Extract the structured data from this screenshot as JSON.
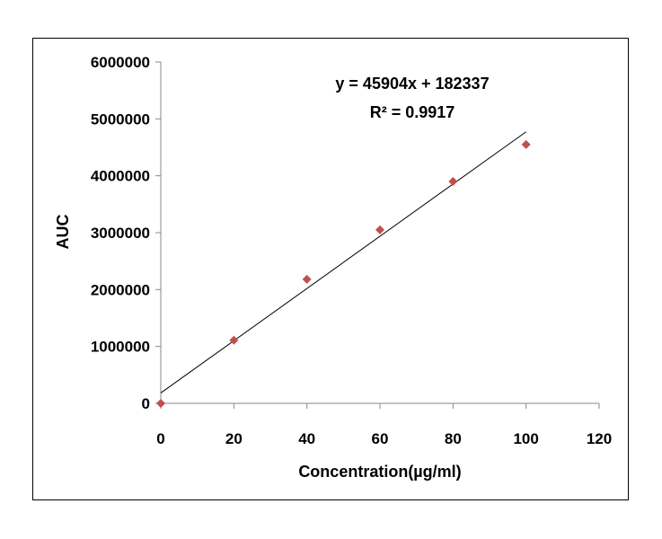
{
  "chart_data": {
    "type": "scatter",
    "xlabel": "Concentration(µg/ml)",
    "ylabel": "AUC",
    "xlim": [
      0,
      120
    ],
    "ylim": [
      0,
      6000000
    ],
    "x_ticks": [
      0,
      20,
      40,
      60,
      80,
      100,
      120
    ],
    "y_ticks": [
      0,
      1000000,
      2000000,
      3000000,
      4000000,
      5000000,
      6000000
    ],
    "x_tick_labels": [
      "0",
      "20",
      "40",
      "60",
      "80",
      "100",
      "120"
    ],
    "y_tick_labels": [
      "0",
      "1000000",
      "2000000",
      "3000000",
      "4000000",
      "5000000",
      "6000000"
    ],
    "grid": false,
    "series": [
      {
        "x": [
          0,
          20,
          40,
          60,
          80,
          100
        ],
        "y": [
          0,
          1110000,
          2180000,
          3050000,
          3900000,
          4550000
        ],
        "marker": "diamond",
        "color": "#c0504d"
      }
    ],
    "trendline": {
      "type": "linear",
      "slope": 45904,
      "intercept": 182337,
      "x_range": [
        0,
        100
      ],
      "color": "#000000",
      "equation_label": "y = 45904x + 182337",
      "r2_label": "R² = 0.9917"
    }
  }
}
